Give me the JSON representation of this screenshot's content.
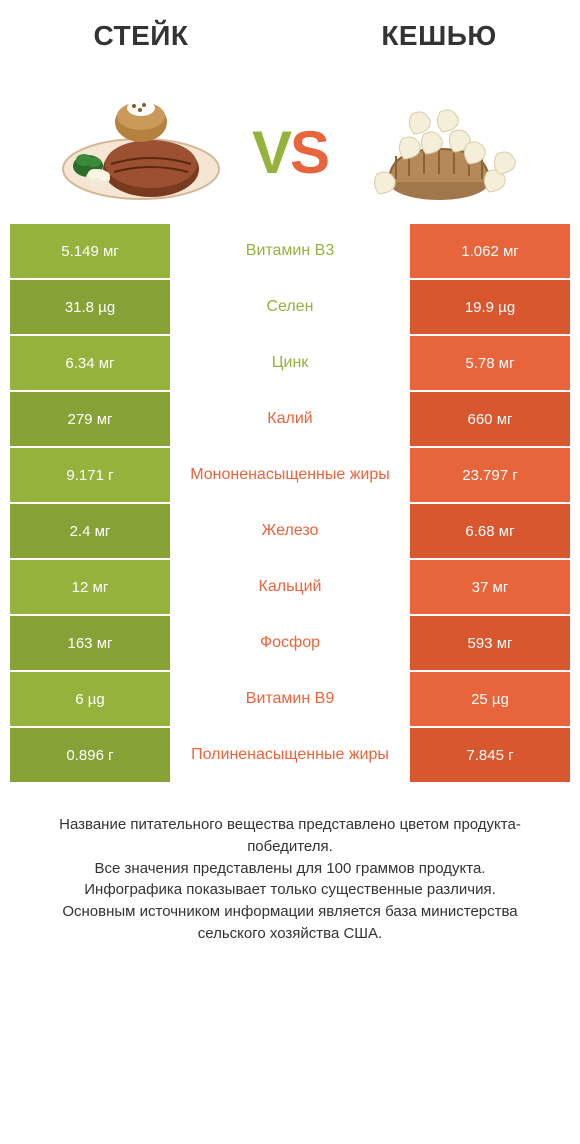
{
  "colors": {
    "green": "#94b23c",
    "green_dark": "#86a135",
    "orange": "#e8653b",
    "orange_dark": "#d8572e",
    "text": "#333333",
    "bg": "#ffffff"
  },
  "left": {
    "title": "СТЕЙК"
  },
  "right": {
    "title": "КЕШЬЮ"
  },
  "vs": {
    "v": "V",
    "s": "S"
  },
  "rows": [
    {
      "label": "Витамин B3",
      "left": "5.149 мг",
      "right": "1.062 мг",
      "winner": "left"
    },
    {
      "label": "Селен",
      "left": "31.8 µg",
      "right": "19.9 µg",
      "winner": "left"
    },
    {
      "label": "Цинк",
      "left": "6.34 мг",
      "right": "5.78 мг",
      "winner": "left"
    },
    {
      "label": "Калий",
      "left": "279 мг",
      "right": "660 мг",
      "winner": "right"
    },
    {
      "label": "Мононенасыщенные жиры",
      "left": "9.171 г",
      "right": "23.797 г",
      "winner": "right"
    },
    {
      "label": "Железо",
      "left": "2.4 мг",
      "right": "6.68 мг",
      "winner": "right"
    },
    {
      "label": "Кальций",
      "left": "12 мг",
      "right": "37 мг",
      "winner": "right"
    },
    {
      "label": "Фосфор",
      "left": "163 мг",
      "right": "593 мг",
      "winner": "right"
    },
    {
      "label": "Витамин B9",
      "left": "6 µg",
      "right": "25 µg",
      "winner": "right"
    },
    {
      "label": "Полиненасыщенные жиры",
      "left": "0.896 г",
      "right": "7.845 г",
      "winner": "right"
    }
  ],
  "footer": "Название питательного вещества представлено цветом продукта-победителя.\nВсе значения представлены для 100 граммов продукта.\nИнфографика показывает только существенные различия.\nОсновным источником информации является база министерства сельского хозяйства США."
}
